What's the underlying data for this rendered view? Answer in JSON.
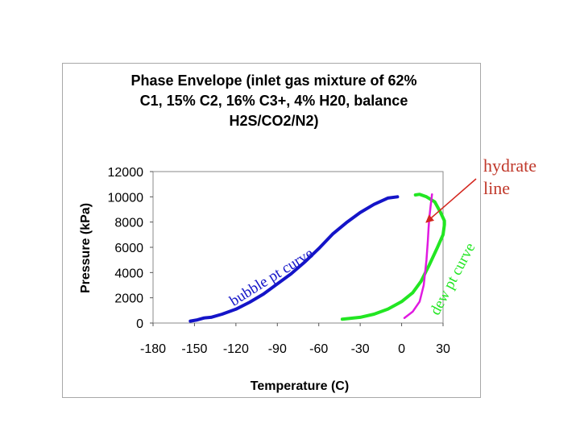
{
  "chart_data": {
    "type": "line",
    "title_lines": [
      "Phase Envelope (inlet gas mixture of 62%",
      "C1, 15% C2, 16% C3+, 4% H20, balance",
      "H2S/CO2/N2)"
    ],
    "xlabel": "Temperature (C)",
    "ylabel": "Pressure (kPa)",
    "xlim": [
      -180,
      30
    ],
    "ylim": [
      0,
      12000
    ],
    "xticks": [
      "-180",
      "-150",
      "-120",
      "-90",
      "-60",
      "-30",
      "0",
      "30"
    ],
    "yticks": [
      "0",
      "2000",
      "4000",
      "6000",
      "8000",
      "10000",
      "12000"
    ],
    "grid": false,
    "legend": "none",
    "series": [
      {
        "color": "#1414c8",
        "x": [
          -153,
          -148,
          -143,
          -138,
          -130,
          -120,
          -110,
          -100,
          -90,
          -80,
          -70,
          -60,
          -50,
          -40,
          -30,
          -20,
          -10,
          -3
        ],
        "y": [
          150,
          250,
          400,
          450,
          700,
          1100,
          1650,
          2300,
          3100,
          3900,
          4850,
          5900,
          7050,
          7950,
          8750,
          9400,
          9900,
          10000
        ]
      },
      {
        "color": "#22e622",
        "x": [
          -43,
          -30,
          -20,
          -10,
          0,
          8,
          14,
          20,
          26,
          30,
          31,
          31,
          28,
          24,
          18,
          13,
          10
        ],
        "y": [
          300,
          450,
          700,
          1100,
          1700,
          2400,
          3300,
          4600,
          6000,
          7000,
          7800,
          8100,
          8800,
          9600,
          10000,
          10200,
          10150
        ]
      },
      {
        "color": "#e01ae0",
        "x": [
          2,
          8,
          13,
          16,
          18,
          19,
          19.5,
          20,
          21,
          22
        ],
        "y": [
          400,
          900,
          1700,
          3000,
          5000,
          6500,
          7500,
          8300,
          9300,
          10200
        ]
      }
    ],
    "annotations": [
      {
        "text": "bubble pt curve",
        "color": "#1414c8"
      },
      {
        "text": "dew pt curve",
        "color": "#22e622"
      },
      {
        "text_lines": [
          "hydrate",
          "line"
        ],
        "color": "#c0392b"
      }
    ]
  }
}
